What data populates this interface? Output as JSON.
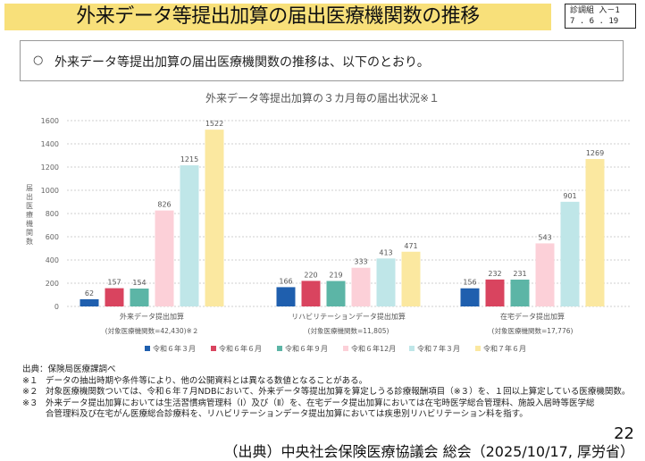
{
  "header": {
    "title": "外来データ等提出加算の届出医療機関数の推移",
    "doc_id_line1": "診調組 入－1",
    "doc_id_line2": "7 . 6 . 19",
    "band_color": "#f8e07a"
  },
  "summary": {
    "bullet": "○",
    "text": "外来データ等提出加算の届出医療機関数の推移は、以下のとおり。"
  },
  "chart_data": {
    "type": "bar",
    "title": "外来データ等提出加算の３カ月毎の届出状況※１",
    "ylabel": "届出医療機関数",
    "xlabel": "",
    "ylim": [
      0,
      1600
    ],
    "yticks": [
      0,
      200,
      400,
      600,
      800,
      1000,
      1200,
      1400,
      1600
    ],
    "grid": true,
    "legend_position": "bottom",
    "categories": [
      {
        "label": "外来データ提出加算",
        "sublabel": "(対象医療機関数=42,430)※２"
      },
      {
        "label": "リハビリテーションデータ提出加算",
        "sublabel": "(対象医療機関数=11,805)"
      },
      {
        "label": "在宅データ提出加算",
        "sublabel": "(対象医療機関数=17,776)"
      }
    ],
    "series": [
      {
        "name": "令和６年３月",
        "color": "#1f5fae",
        "values": [
          62,
          166,
          156
        ]
      },
      {
        "name": "令和６年６月",
        "color": "#d9445f",
        "values": [
          157,
          220,
          232
        ]
      },
      {
        "name": "令和６年９月",
        "color": "#5cb5a6",
        "values": [
          154,
          219,
          231
        ]
      },
      {
        "name": "令和６年12月",
        "color": "#fcd0d8",
        "values": [
          826,
          333,
          543
        ]
      },
      {
        "name": "令和７年３月",
        "color": "#bfe6e8",
        "values": [
          1215,
          413,
          901
        ]
      },
      {
        "name": "令和７年６月",
        "color": "#fbe8a0",
        "values": [
          1522,
          471,
          1269
        ]
      }
    ]
  },
  "footnotes": [
    {
      "mark": "出典：",
      "text": "保険局医療課調べ"
    },
    {
      "mark": "※１",
      "text": "データの抽出時期や条件等により、他の公開資料とは異なる数値となることがある。"
    },
    {
      "mark": "※２",
      "text": "対象医療機関数ついては、令和６年７月NDBにおいて、外来データ等提出加算を算定しうる診療報酬項目（※３）を、１回以上算定している医療機関数。"
    },
    {
      "mark": "※３",
      "text": "外来データ提出加算においては生活習慣病管理料（Ⅰ）及び（Ⅱ）を、在宅データ提出加算においては在宅時医学総合管理料、施設入居時等医学総合管理料及び在宅がん医療総合診療料を、リハビリテーションデータ提出加算においては疾患別リハビリテーション料を指す。"
    }
  ],
  "page_number": "22",
  "source": "（出典）中央社会保険医療協議会 総会（2025/10/17, 厚労省）"
}
